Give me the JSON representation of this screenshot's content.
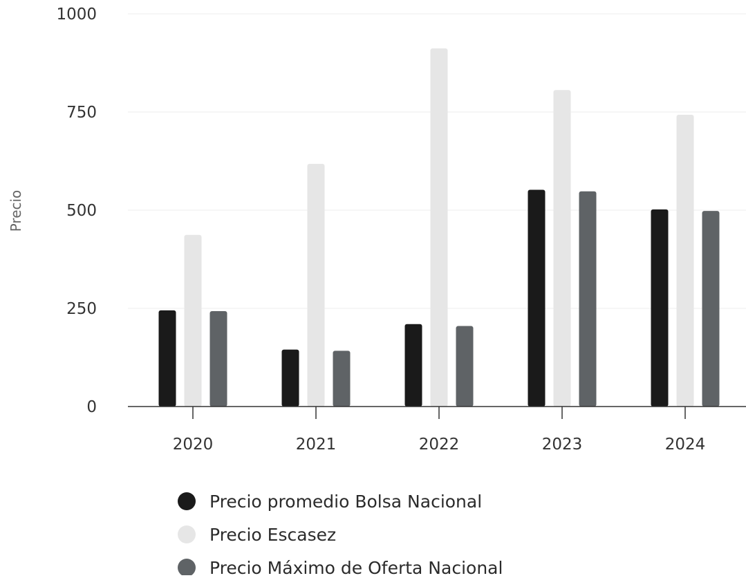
{
  "chart_data": {
    "type": "bar",
    "title": "",
    "xlabel": "",
    "ylabel": "Precio",
    "categories": [
      "2020",
      "2021",
      "2022",
      "2023",
      "2024"
    ],
    "ylim": [
      0,
      1000
    ],
    "yticks": [
      0,
      250,
      500,
      750,
      1000
    ],
    "grid": true,
    "legend_position": "bottom",
    "series": [
      {
        "name": "Precio promedio Bolsa Nacional",
        "color": "#1a1a1a",
        "values": [
          245,
          145,
          210,
          552,
          502
        ]
      },
      {
        "name": "Precio Escasez",
        "color": "#e6e6e6",
        "values": [
          437,
          618,
          912,
          806,
          743
        ]
      },
      {
        "name": "Precio Máximo de Oferta Nacional",
        "color": "#5f6366",
        "values": [
          243,
          142,
          205,
          548,
          498
        ]
      }
    ]
  }
}
